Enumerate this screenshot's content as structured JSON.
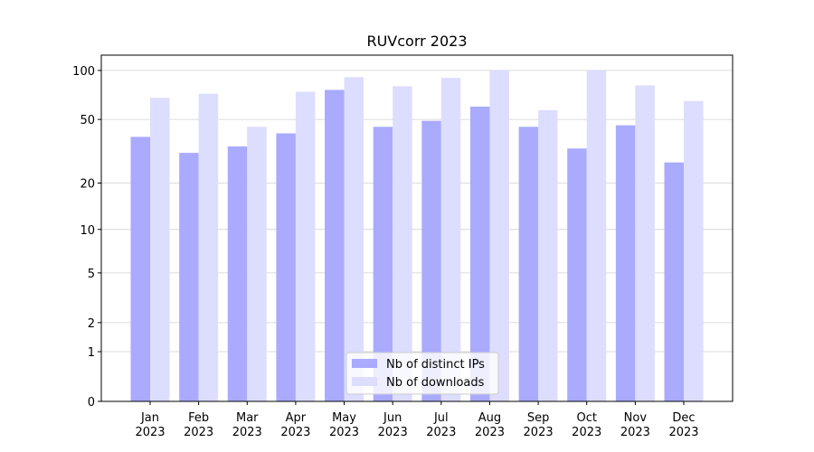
{
  "chart_data": {
    "type": "bar",
    "title": "RUVcorr 2023",
    "categories": [
      "Jan\n2023",
      "Feb\n2023",
      "Mar\n2023",
      "Apr\n2023",
      "May\n2023",
      "Jun\n2023",
      "Jul\n2023",
      "Aug\n2023",
      "Sep\n2023",
      "Oct\n2023",
      "Nov\n2023",
      "Dec\n2023"
    ],
    "series": [
      {
        "name": "Nb of distinct IPs",
        "color": "#aaaaff",
        "values": [
          39,
          31,
          34,
          41,
          76,
          45,
          49,
          60,
          45,
          33,
          46,
          27
        ]
      },
      {
        "name": "Nb of downloads",
        "color": "#ddddff",
        "values": [
          68,
          72,
          45,
          74,
          91,
          80,
          90,
          100,
          57,
          100,
          81,
          65
        ]
      }
    ],
    "yscale": "log1p",
    "ylim": [
      0,
      124
    ],
    "yticks": [
      0,
      1,
      2,
      5,
      10,
      20,
      50,
      100
    ],
    "grid": true,
    "legend": "lower center"
  }
}
